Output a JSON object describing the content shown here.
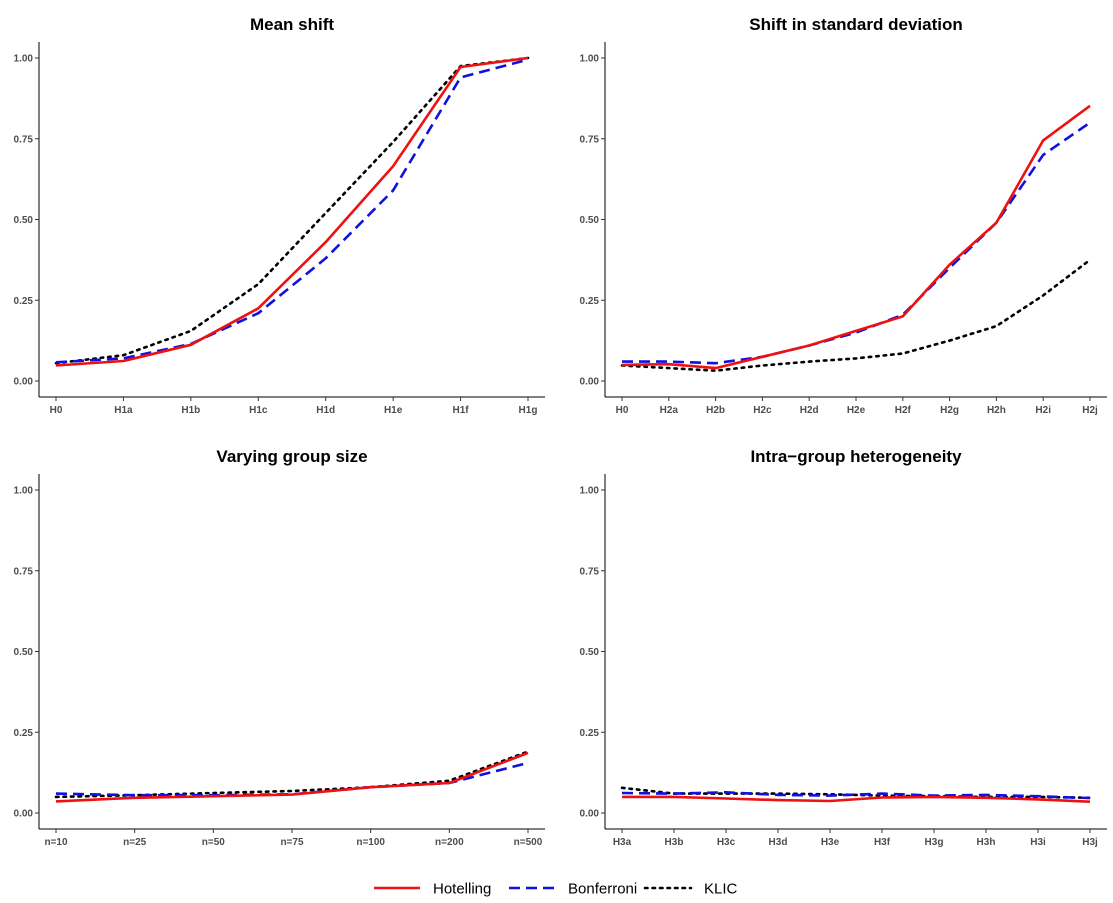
{
  "legend": {
    "items": [
      {
        "label": "Hotelling",
        "color": "#ee1111",
        "dash": "solid"
      },
      {
        "label": "Bonferroni",
        "color": "#1111dd",
        "dash": "dashed"
      },
      {
        "label": "KLIC",
        "color": "#000000",
        "dash": "dotted"
      }
    ],
    "placement": "bottom"
  },
  "chart_data": [
    {
      "type": "line",
      "title": "Mean shift",
      "xlabel": "",
      "ylabel": "",
      "categories": [
        "H0",
        "H1a",
        "H1b",
        "H1c",
        "H1d",
        "H1e",
        "H1f",
        "H1g"
      ],
      "ylim": [
        0,
        1
      ],
      "yticks": [
        "0.00",
        "0.25",
        "0.50",
        "0.75",
        "1.00"
      ],
      "grid": false,
      "series": [
        {
          "name": "Hotelling",
          "values": [
            0.048,
            0.062,
            0.112,
            0.225,
            0.43,
            0.665,
            0.972,
            1.0
          ]
        },
        {
          "name": "Bonferroni",
          "values": [
            0.058,
            0.07,
            0.115,
            0.21,
            0.38,
            0.59,
            0.94,
            0.995
          ]
        },
        {
          "name": "KLIC",
          "values": [
            0.055,
            0.08,
            0.155,
            0.3,
            0.52,
            0.74,
            0.975,
            1.0
          ]
        }
      ]
    },
    {
      "type": "line",
      "title": "Shift in standard deviation",
      "xlabel": "",
      "ylabel": "",
      "categories": [
        "H0",
        "H2a",
        "H2b",
        "H2c",
        "H2d",
        "H2e",
        "H2f",
        "H2g",
        "H2h",
        "H2i",
        "H2j"
      ],
      "ylim": [
        0,
        1
      ],
      "yticks": [
        "0.00",
        "0.25",
        "0.50",
        "0.75",
        "1.00"
      ],
      "grid": false,
      "series": [
        {
          "name": "Hotelling",
          "values": [
            0.05,
            0.052,
            0.04,
            0.075,
            0.11,
            0.155,
            0.2,
            0.36,
            0.49,
            0.745,
            0.852
          ]
        },
        {
          "name": "Bonferroni",
          "values": [
            0.06,
            0.06,
            0.055,
            0.075,
            0.11,
            0.15,
            0.205,
            0.35,
            0.49,
            0.7,
            0.8
          ]
        },
        {
          "name": "KLIC",
          "values": [
            0.048,
            0.04,
            0.032,
            0.048,
            0.06,
            0.07,
            0.085,
            0.125,
            0.17,
            0.265,
            0.375
          ]
        }
      ]
    },
    {
      "type": "line",
      "title": "Varying group size",
      "xlabel": "",
      "ylabel": "",
      "categories": [
        "n=10",
        "n=25",
        "n=50",
        "n=75",
        "n=100",
        "n=200",
        "n=500"
      ],
      "ylim": [
        0,
        1
      ],
      "yticks": [
        "0.00",
        "0.25",
        "0.50",
        "0.75",
        "1.00"
      ],
      "grid": false,
      "series": [
        {
          "name": "Hotelling",
          "values": [
            0.036,
            0.047,
            0.052,
            0.057,
            0.08,
            0.093,
            0.186
          ]
        },
        {
          "name": "Bonferroni",
          "values": [
            0.06,
            0.055,
            0.055,
            0.058,
            0.08,
            0.093,
            0.155
          ]
        },
        {
          "name": "KLIC",
          "values": [
            0.05,
            0.055,
            0.062,
            0.068,
            0.08,
            0.1,
            0.19
          ]
        }
      ]
    },
    {
      "type": "line",
      "title": "Intra−group heterogeneity",
      "xlabel": "",
      "ylabel": "",
      "categories": [
        "H3a",
        "H3b",
        "H3c",
        "H3d",
        "H3e",
        "H3f",
        "H3g",
        "H3h",
        "H3i",
        "H3j"
      ],
      "ylim": [
        0,
        1
      ],
      "yticks": [
        "0.00",
        "0.25",
        "0.50",
        "0.75",
        "1.00"
      ],
      "grid": false,
      "series": [
        {
          "name": "Hotelling",
          "values": [
            0.05,
            0.05,
            0.045,
            0.04,
            0.037,
            0.048,
            0.05,
            0.047,
            0.042,
            0.035
          ]
        },
        {
          "name": "Bonferroni",
          "values": [
            0.062,
            0.06,
            0.064,
            0.056,
            0.054,
            0.06,
            0.054,
            0.056,
            0.052,
            0.046
          ]
        },
        {
          "name": "KLIC",
          "values": [
            0.078,
            0.06,
            0.06,
            0.06,
            0.058,
            0.054,
            0.052,
            0.05,
            0.05,
            0.047
          ]
        }
      ]
    }
  ]
}
